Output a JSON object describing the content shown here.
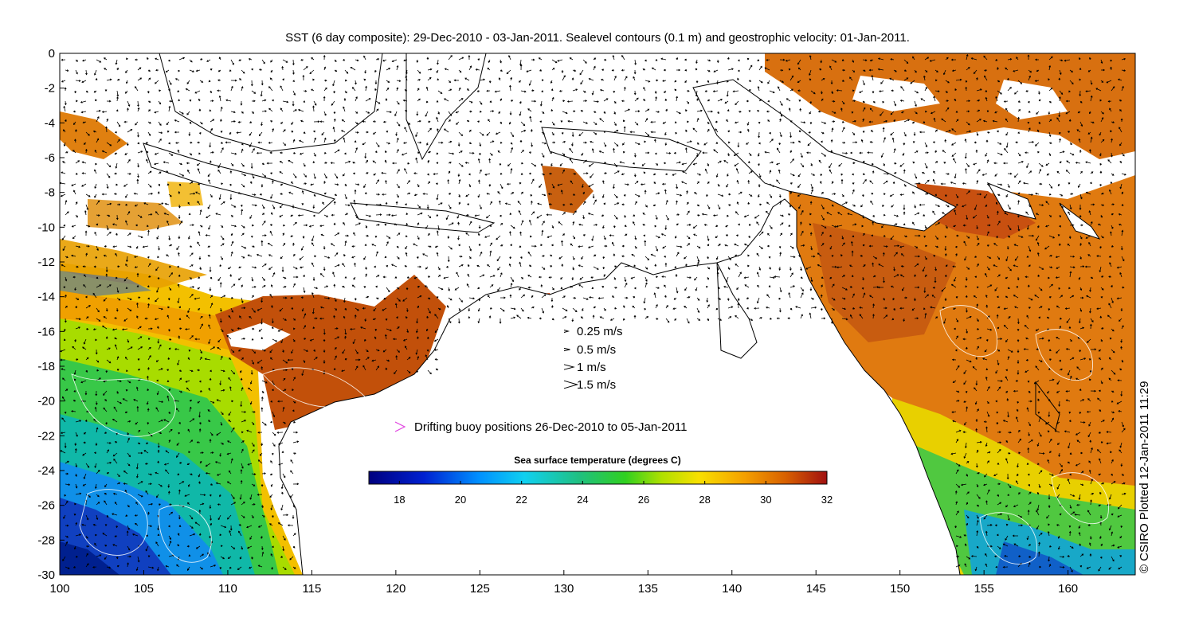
{
  "title": "SST (6 day composite): 29-Dec-2010 - 03-Jan-2011. Sealevel contours (0.1 m) and geostrophic velocity: 01-Jan-2011.",
  "credit": "© CSIRO Plotted 12-Jan-2011 11:29",
  "map": {
    "lon_range": [
      100,
      164
    ],
    "lat_range": [
      -30,
      0
    ],
    "x_ticks": [
      100,
      105,
      110,
      115,
      120,
      125,
      130,
      135,
      140,
      145,
      150,
      155,
      160
    ],
    "y_ticks": [
      0,
      -2,
      -4,
      -6,
      -8,
      -10,
      -12,
      -14,
      -16,
      -18,
      -20,
      -22,
      -24,
      -26,
      -28,
      -30
    ]
  },
  "velocity_legend": {
    "items": [
      {
        "label": "0.25 m/s",
        "speed": 0.25
      },
      {
        "label": "0.5 m/s",
        "speed": 0.5
      },
      {
        "label": "1 m/s",
        "speed": 1
      },
      {
        "label": "1.5 m/s",
        "speed": 1.5
      }
    ]
  },
  "buoy_legend": {
    "label": "Drifting buoy positions 26-Dec-2010 to 05-Jan-2011",
    "color": "#e040e0"
  },
  "colorbar": {
    "title": "Sea surface temperature (degrees C)",
    "range": [
      17,
      32
    ],
    "ticks": [
      18,
      20,
      22,
      24,
      26,
      28,
      30,
      32
    ]
  }
}
